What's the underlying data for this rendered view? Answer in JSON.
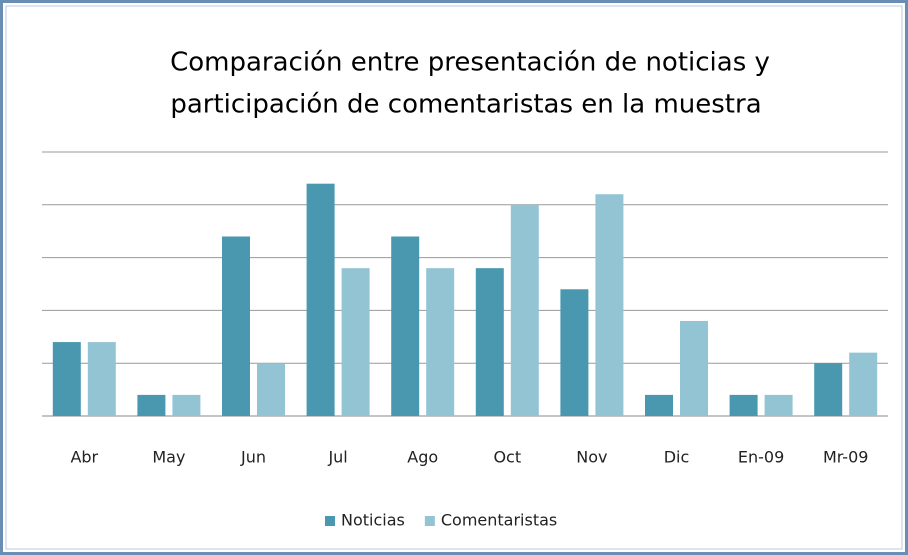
{
  "chart_data": {
    "type": "bar",
    "title": [
      "Comparación entre presentación de noticias y",
      "participación de comentaristas en la muestra"
    ],
    "categories": [
      "Abr",
      "May",
      "Jun",
      "Jul",
      "Ago",
      "Oct",
      "Nov",
      "Dic",
      "En-09",
      "Mr-09"
    ],
    "series": [
      {
        "name": "Noticias",
        "color": "#4a98b0",
        "values": [
          7,
          2,
          17,
          22,
          17,
          14,
          12,
          2,
          2,
          5
        ]
      },
      {
        "name": "Comentaristas",
        "color": "#93c4d4",
        "values": [
          7,
          2,
          5,
          14,
          14,
          20,
          21,
          9,
          2,
          6
        ]
      }
    ],
    "ylim": [
      0,
      25
    ],
    "yticks": [
      0,
      5,
      10,
      15,
      20,
      25
    ],
    "grid": true,
    "legend": "bottom"
  }
}
